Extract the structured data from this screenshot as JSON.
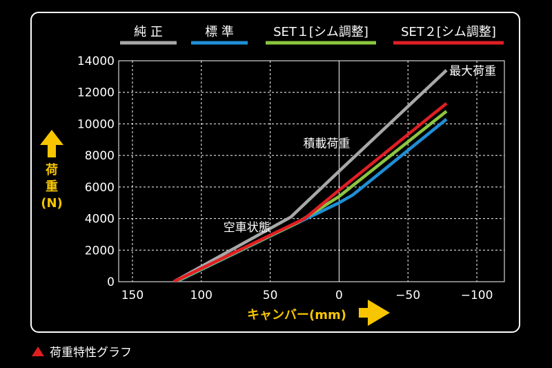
{
  "caption": "荷重特性グラフ",
  "colors": {
    "accent_yellow": "#f7c600",
    "caption_marker": "#e01e1e",
    "grid": "#ffffff"
  },
  "chart_data": {
    "type": "line",
    "title": "",
    "xlabel": "キャンバー(mm)",
    "ylabel": "荷重(N)",
    "xlim": [
      160,
      -120
    ],
    "ylim": [
      0,
      14000
    ],
    "x_ticks": [
      150,
      100,
      50,
      0,
      -50,
      -100
    ],
    "x_tick_labels": [
      "150",
      "100",
      "50",
      "0",
      "−50",
      "−100"
    ],
    "y_ticks": [
      0,
      2000,
      4000,
      6000,
      8000,
      10000,
      12000,
      14000
    ],
    "y_tick_labels": [
      "0",
      "2000",
      "4000",
      "6000",
      "8000",
      "10000",
      "12000",
      "14000"
    ],
    "grid": true,
    "legend_position": "top",
    "series": [
      {
        "name": "純 正",
        "color": "#a8a8a8",
        "points": [
          [
            120,
            0
          ],
          [
            35,
            4100
          ],
          [
            0,
            7000
          ],
          [
            -78,
            13400
          ]
        ]
      },
      {
        "name": "標 準",
        "color": "#1f8fd6",
        "points": [
          [
            118,
            0
          ],
          [
            0,
            5000
          ],
          [
            -10,
            5500
          ],
          [
            -78,
            10300
          ]
        ]
      },
      {
        "name": "SET１[シム調整]",
        "color": "#8cc63f",
        "points": [
          [
            119,
            0
          ],
          [
            30,
            3750
          ],
          [
            0,
            5400
          ],
          [
            -78,
            10800
          ]
        ]
      },
      {
        "name": "SET２[シム調整]",
        "color": "#e01e25",
        "points": [
          [
            120,
            0
          ],
          [
            25,
            4000
          ],
          [
            0,
            5800
          ],
          [
            -78,
            11300
          ]
        ]
      }
    ],
    "annotations": [
      {
        "text": "最大荷重",
        "x": -80,
        "y": 13100
      },
      {
        "text": "積載荷重",
        "x": 26,
        "y": 8500
      },
      {
        "text": "空車状態",
        "x": 84,
        "y": 3200
      }
    ]
  }
}
